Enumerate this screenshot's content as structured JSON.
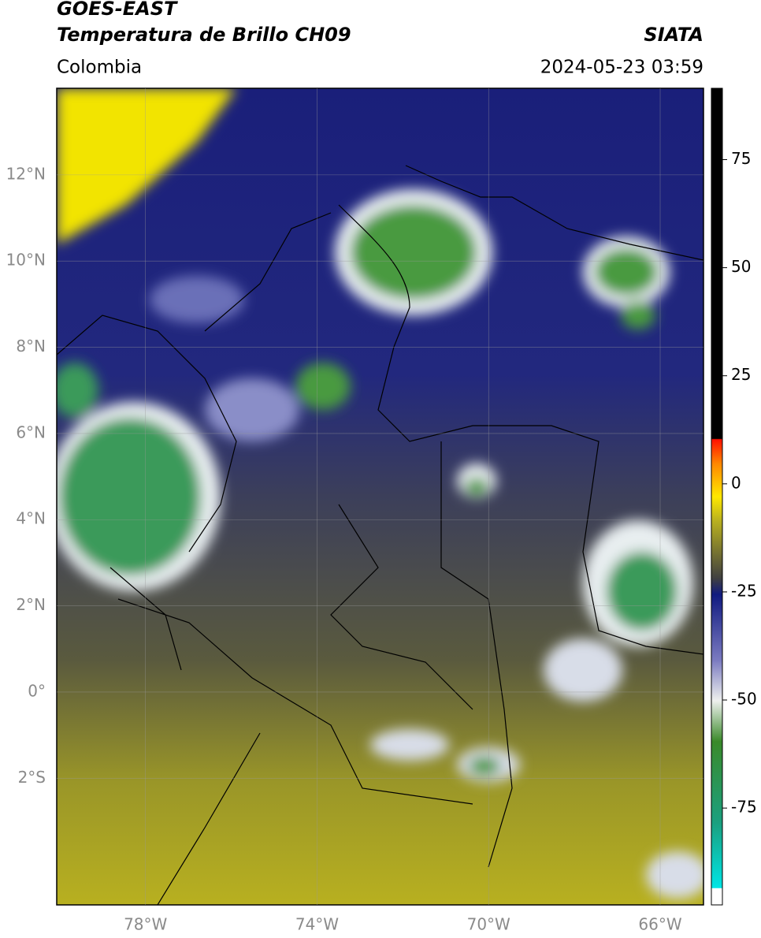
{
  "header": {
    "title": "GOES-EAST",
    "subtitle": "Temperatura de Brillo CH09",
    "source": "SIATA",
    "region": "Colombia",
    "datetime": "2024-05-23 03:59"
  },
  "map": {
    "xlim": [
      -80.07,
      -64.99
    ],
    "ylim": [
      -4.94,
      14.01
    ],
    "xticks": [
      {
        "value": -78,
        "label": "78°W"
      },
      {
        "value": -74,
        "label": "74°W"
      },
      {
        "value": -70,
        "label": "70°W"
      },
      {
        "value": -66,
        "label": "66°W"
      }
    ],
    "yticks": [
      {
        "value": 12,
        "label": "12°N"
      },
      {
        "value": 10,
        "label": "10°N"
      },
      {
        "value": 8,
        "label": "8°N"
      },
      {
        "value": 6,
        "label": "6°N"
      },
      {
        "value": 4,
        "label": "4°N"
      },
      {
        "value": 2,
        "label": "2°N"
      },
      {
        "value": 0,
        "label": "0°"
      },
      {
        "value": -2,
        "label": "2°S"
      }
    ]
  },
  "colorbar": {
    "lim": [
      -97.4,
      91.5
    ],
    "ticks": [
      75,
      50,
      25,
      0,
      -25,
      -50,
      -75
    ]
  }
}
